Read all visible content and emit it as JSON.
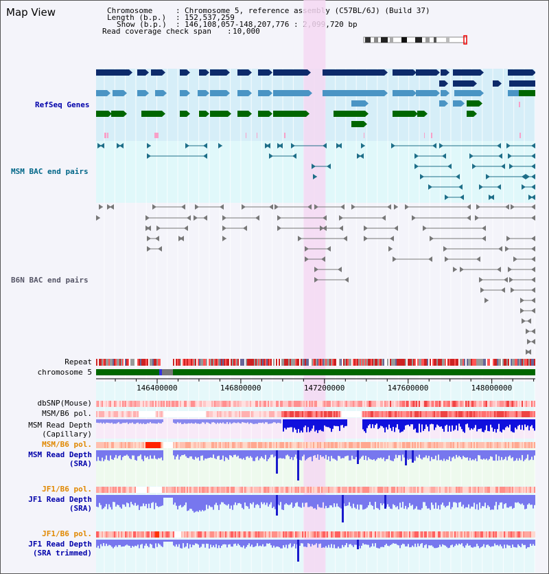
{
  "title": "Map View",
  "header": {
    "chromosome_label": "Chromosome",
    "chromosome_value": "Chromosome 5, reference assembly (C57BL/6J) (Build 37)",
    "length_label": "Length (b.p.)",
    "length_value": "152,537,259",
    "show_label": "Show (b.p.)",
    "show_value": "146,108,057-148,207,776 : 2,099,720 bp",
    "span_label": "Read coverage check span",
    "span_value": "10,000"
  },
  "tracks": {
    "refseq": "RefSeq Genes",
    "msm_bac": "MSM BAC end pairs",
    "b6n_bac": "B6N BAC end pairs",
    "repeat": "Repeat",
    "chromosome": "chromosome 5",
    "dbsnp": "dbSNP(Mouse)",
    "msm_pol": "MSM/B6 pol.",
    "msm_depth_cap_1": "MSM Read Depth",
    "msm_depth_cap_2": "(Capillary)",
    "msm_pol_sra": "MSM/B6 pol.",
    "msm_depth_sra_1": "MSM Read Depth",
    "msm_depth_sra_2": "(SRA)",
    "jf1_pol": "JF1/B6 pol.",
    "jf1_depth_1": "JF1 Read Depth",
    "jf1_depth_2": "(SRA)",
    "jf1_pol_2": "JF1/B6 pol.",
    "jf1_trim_1": "JF1 Read Depth",
    "jf1_trim_2": "(SRA trimmed)"
  },
  "axis": {
    "ticks": [
      {
        "label": "146400000",
        "value": 146400000
      },
      {
        "label": "146800000",
        "value": 146800000
      },
      {
        "label": "147200000",
        "value": 147200000
      },
      {
        "label": "147600000",
        "value": 147600000
      },
      {
        "label": "148000000",
        "value": 148000000
      }
    ],
    "start": 146108057,
    "end": 148207776,
    "highlight_start": 147100000,
    "highlight_end": 147205000
  },
  "colors": {
    "refseq_bg": "#d6eef8",
    "msm_bg": "#e0f8fa",
    "highlight": "#f5d8f2",
    "gene_dark": "#0d2a6a",
    "gene_mid": "#4a94c4",
    "gene_green": "#006600",
    "bac_teal": "#1e6e88",
    "bac_gray": "#777777",
    "chrom_green": "#006600",
    "depth_dark_blue": "#1010dd",
    "depth_light_blue": "#7777ee"
  }
}
